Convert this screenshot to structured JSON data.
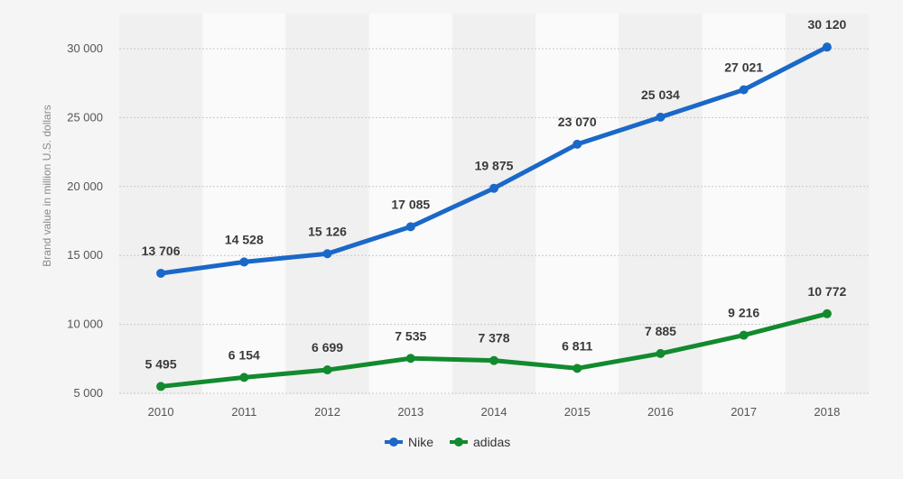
{
  "chart_data": {
    "type": "line",
    "x": [
      "2010",
      "2011",
      "2012",
      "2013",
      "2014",
      "2015",
      "2016",
      "2017",
      "2018"
    ],
    "series": [
      {
        "name": "Nike",
        "color": "#1a68c8",
        "values": [
          13706,
          14528,
          15126,
          17085,
          19875,
          23070,
          25034,
          27021,
          30120
        ],
        "labels": [
          "13 706",
          "14 528",
          "15 126",
          "17 085",
          "19 875",
          "23 070",
          "25 034",
          "27 021",
          "30 120"
        ]
      },
      {
        "name": "adidas",
        "color": "#128a2e",
        "values": [
          5495,
          6154,
          6699,
          7535,
          7378,
          6811,
          7885,
          9216,
          10772
        ],
        "labels": [
          "5 495",
          "6 154",
          "6 699",
          "7 535",
          "7 378",
          "6 811",
          "7 885",
          "9 216",
          "10 772"
        ]
      }
    ],
    "ylabel": "Brand value in million U.S. dollars",
    "ylim": [
      5000,
      30000
    ],
    "yticks": [
      5000,
      10000,
      15000,
      20000,
      25000,
      30000
    ],
    "ytick_labels": [
      "5 000",
      "10 000",
      "15 000",
      "20 000",
      "25 000",
      "30 000"
    ],
    "grid": true,
    "legend_position": "bottom-center"
  }
}
